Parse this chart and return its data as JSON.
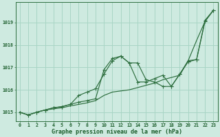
{
  "background_color": "#ceeae0",
  "grid_color": "#a8d5c5",
  "line_color": "#2d6e3e",
  "marker_color": "#2d6e3e",
  "xlabel": "Graphe pression niveau de la mer (hPa)",
  "xlabel_color": "#1a5c2a",
  "xlim": [
    -0.5,
    23.5
  ],
  "ylim": [
    1014.6,
    1019.9
  ],
  "yticks": [
    1015,
    1016,
    1017,
    1018,
    1019
  ],
  "xticks": [
    0,
    1,
    2,
    3,
    4,
    5,
    6,
    7,
    8,
    9,
    10,
    11,
    12,
    13,
    14,
    15,
    16,
    17,
    18,
    19,
    20,
    21,
    22,
    23
  ],
  "line1_x": [
    0,
    1,
    2,
    3,
    4,
    5,
    6,
    7,
    8,
    9,
    10,
    11,
    12,
    13,
    14,
    15,
    16,
    17,
    18,
    19,
    20,
    21,
    22,
    23
  ],
  "line1_y": [
    1015.0,
    1014.88,
    1015.0,
    1015.1,
    1015.15,
    1015.2,
    1015.28,
    1015.35,
    1015.42,
    1015.52,
    1015.75,
    1015.9,
    1015.95,
    1016.0,
    1016.1,
    1016.2,
    1016.3,
    1016.45,
    1016.55,
    1016.65,
    1017.3,
    1018.2,
    1019.05,
    1019.55
  ],
  "line2_x": [
    0,
    1,
    2,
    3,
    4,
    5,
    6,
    7,
    8,
    9,
    10,
    11,
    12,
    13,
    14,
    15,
    16,
    17,
    18,
    19,
    20,
    21,
    22,
    23
  ],
  "line2_y": [
    1015.0,
    1014.88,
    1015.0,
    1015.1,
    1015.2,
    1015.25,
    1015.35,
    1015.75,
    1015.9,
    1016.05,
    1016.7,
    1017.3,
    1017.5,
    1017.2,
    1017.2,
    1016.45,
    1016.35,
    1016.15,
    1016.15,
    1016.7,
    1017.25,
    1017.35,
    1019.1,
    1019.55
  ],
  "line3_x": [
    0,
    1,
    2,
    3,
    4,
    5,
    6,
    7,
    8,
    9,
    10,
    11,
    12,
    13,
    14,
    15,
    16,
    17,
    18,
    19,
    20,
    21,
    22,
    23
  ],
  "line3_y": [
    1015.0,
    1014.88,
    1015.0,
    1015.1,
    1015.2,
    1015.25,
    1015.35,
    1015.45,
    1015.52,
    1015.6,
    1016.9,
    1017.4,
    1017.5,
    1017.2,
    1016.35,
    1016.35,
    1016.5,
    1016.65,
    1016.15,
    1016.7,
    1017.3,
    1017.35,
    1019.05,
    1019.55
  ]
}
